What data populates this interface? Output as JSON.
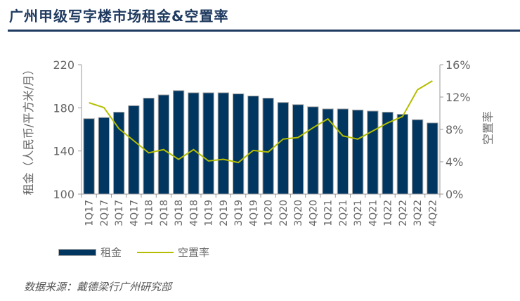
{
  "title": "广州甲级写字楼市场租金&空置率",
  "source": "数据来源：戴德梁行广州研究部",
  "colors": {
    "bar": "#003660",
    "line": "#b5bd00",
    "title": "#1f3a5f"
  },
  "chart_data": {
    "type": "bar+line",
    "title": "广州甲级写字楼市场租金&空置率",
    "categories": [
      "1Q17",
      "2Q17",
      "3Q17",
      "4Q17",
      "1Q18",
      "2Q18",
      "3Q18",
      "4Q18",
      "1Q19",
      "2Q19",
      "3Q19",
      "4Q19",
      "1Q20",
      "2Q20",
      "3Q20",
      "4Q20",
      "1Q21",
      "2Q21",
      "3Q21",
      "4Q21",
      "1Q22",
      "2Q22",
      "3Q22",
      "4Q22"
    ],
    "series": [
      {
        "name": "租金",
        "type": "bar",
        "axis": "left",
        "values": [
          170,
          171,
          176,
          182,
          189,
          192,
          196,
          194,
          194,
          194,
          193,
          191,
          189,
          185,
          183,
          181,
          179,
          179,
          178,
          177,
          176,
          174,
          169,
          166
        ]
      },
      {
        "name": "空置率",
        "type": "line",
        "axis": "right",
        "values": [
          11.3,
          10.7,
          8.1,
          6.6,
          5.1,
          5.5,
          4.3,
          5.5,
          4.1,
          4.3,
          3.9,
          5.4,
          5.2,
          6.8,
          7.0,
          8.2,
          9.3,
          7.2,
          6.8,
          7.8,
          8.8,
          9.6,
          12.9,
          14.0
        ]
      }
    ],
    "ylabel": "租金（人民币/平方米/月）",
    "ylim": [
      100,
      220
    ],
    "yticks": [
      "100",
      "140",
      "180",
      "220"
    ],
    "yticks_values": [
      100,
      140,
      180,
      220
    ],
    "y2label": "空置率",
    "y2lim": [
      0,
      16
    ],
    "y2ticks": [
      "0%",
      "4%",
      "8%",
      "12%",
      "16%"
    ],
    "y2ticks_values": [
      0,
      4,
      8,
      12,
      16
    ],
    "grid": false,
    "legend": "bottom"
  }
}
